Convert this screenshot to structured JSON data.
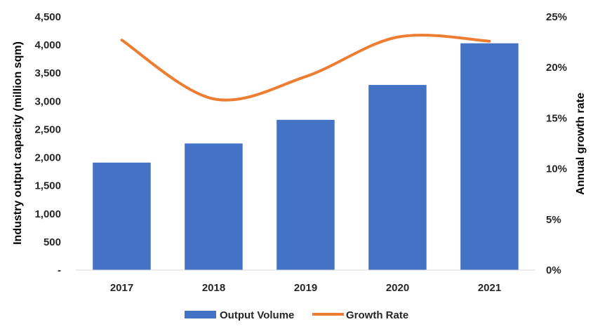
{
  "chart_data": {
    "type": "bar",
    "categories": [
      "2017",
      "2018",
      "2019",
      "2020",
      "2021"
    ],
    "series": [
      {
        "name": "Output Volume",
        "type": "bar",
        "axis": "left",
        "color": "#4472C4",
        "values": [
          1910,
          2250,
          2670,
          3290,
          4030
        ]
      },
      {
        "name": "Growth Rate",
        "type": "line",
        "axis": "right",
        "color": "#ED7D31",
        "smooth": true,
        "values": [
          22.7,
          16.9,
          19.1,
          23.0,
          22.6
        ]
      }
    ],
    "ylabel": "Industry output capacity (million sqm)",
    "ylabel_right": "Annual growth rate",
    "ylim": [
      0,
      4500
    ],
    "ylim_right": [
      0,
      25
    ],
    "yticks": [
      "-",
      "500",
      "1,000",
      "1,500",
      "2,000",
      "2,500",
      "3,000",
      "3,500",
      "4,000",
      "4,500"
    ],
    "yticks_right": [
      "0%",
      "5%",
      "10%",
      "15%",
      "20%",
      "25%"
    ],
    "grid": false,
    "legend": "bottom"
  }
}
